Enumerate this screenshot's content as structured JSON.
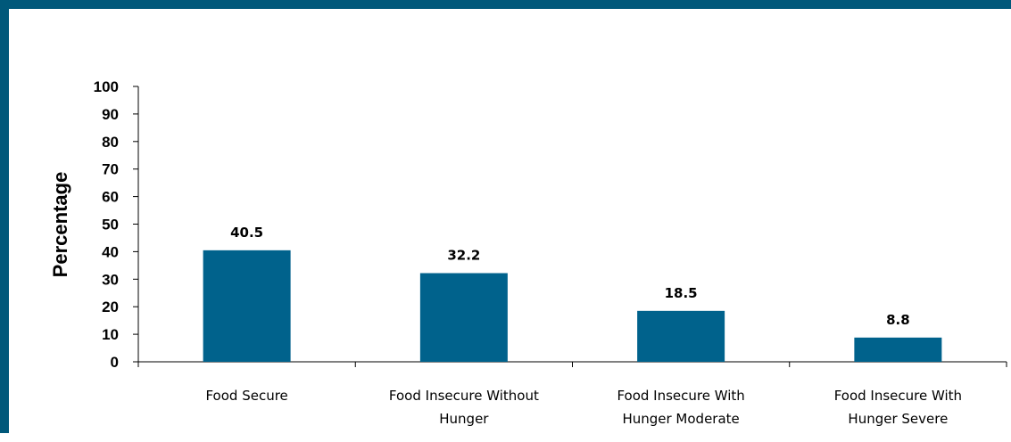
{
  "chart_data": {
    "type": "bar",
    "title": "",
    "ylabel": "Percentage",
    "xlabel": "",
    "ylim": [
      0,
      100
    ],
    "yticks": [
      0,
      10,
      20,
      30,
      40,
      50,
      60,
      70,
      80,
      90,
      100
    ],
    "categories": [
      [
        "Food Secure"
      ],
      [
        "Food Insecure Without",
        "Hunger"
      ],
      [
        "Food Insecure With",
        "Hunger Moderate"
      ],
      [
        "Food Insecure With",
        "Hunger Severe"
      ]
    ],
    "values": [
      40.5,
      32.2,
      18.5,
      8.8
    ],
    "data_labels": [
      "40.5",
      "32.2",
      "18.5",
      "8.8"
    ],
    "bar_color": "#00628c",
    "frame_color": "#00587a",
    "grid": false,
    "legend": "none"
  }
}
